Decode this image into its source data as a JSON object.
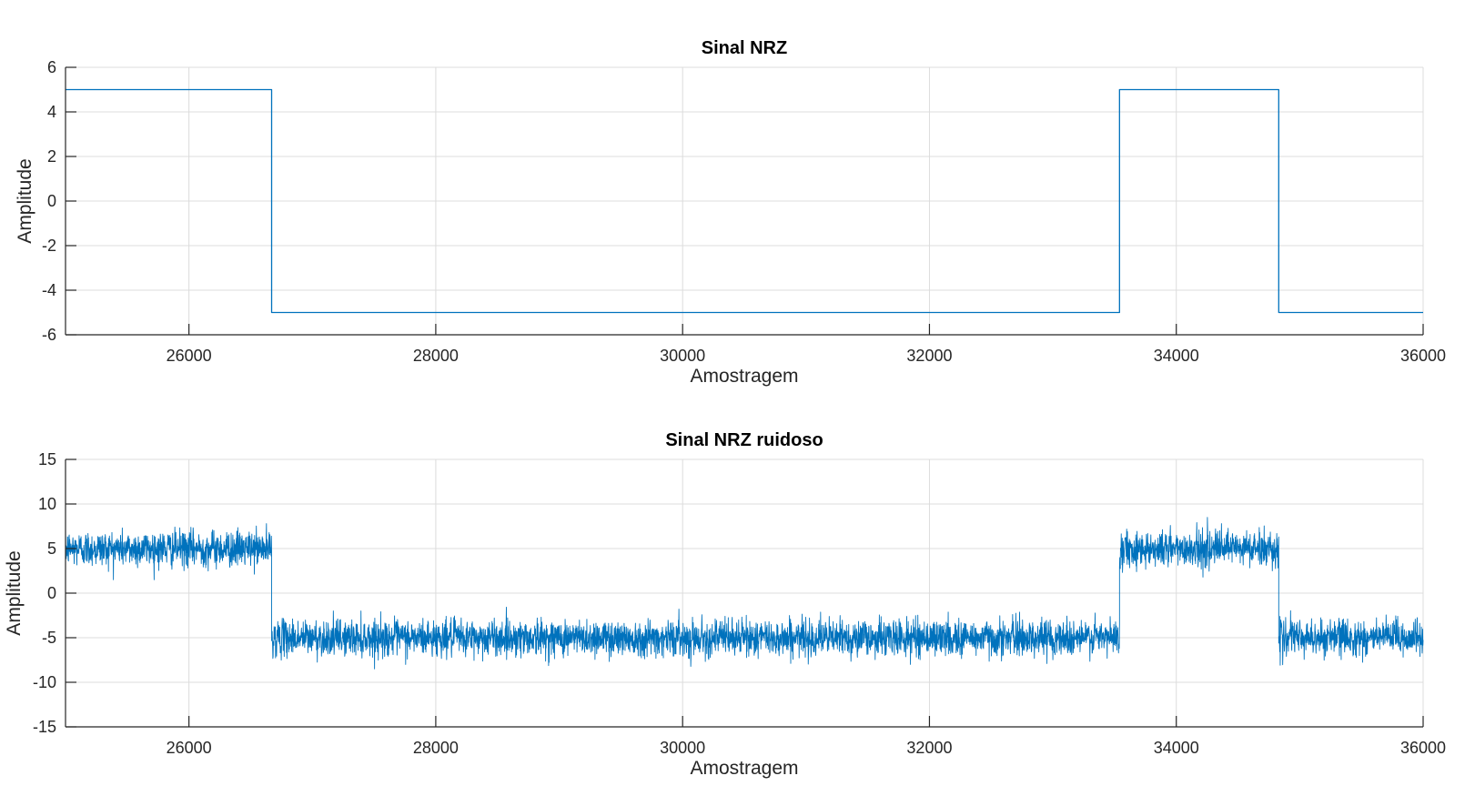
{
  "chart_data": [
    {
      "type": "line",
      "title": "Sinal NRZ",
      "xlabel": "Amostragem",
      "ylabel": "Amplitude",
      "xlim": [
        25000,
        36000
      ],
      "ylim": [
        -6,
        6
      ],
      "xticks": [
        26000,
        28000,
        30000,
        32000,
        34000,
        36000
      ],
      "yticks": [
        -6,
        -4,
        -2,
        0,
        2,
        4,
        6
      ],
      "grid": true,
      "color": "#0072bd",
      "series": [
        {
          "x": [
            25000,
            26670,
            26670,
            33540,
            33540,
            34830,
            34830,
            36000
          ],
          "y": [
            5,
            5,
            -5,
            -5,
            5,
            5,
            -5,
            -5
          ]
        }
      ]
    },
    {
      "type": "line",
      "title": "Sinal NRZ ruidoso",
      "xlabel": "Amostragem",
      "ylabel": "Amplitude",
      "xlim": [
        25000,
        36000
      ],
      "ylim": [
        -15,
        15
      ],
      "xticks": [
        26000,
        28000,
        30000,
        32000,
        34000,
        36000
      ],
      "yticks": [
        -15,
        -10,
        -5,
        0,
        5,
        10,
        15
      ],
      "grid": true,
      "color": "#0072bd",
      "noise_std": 1,
      "noise_range": [
        -3.5,
        3.5
      ],
      "series": [
        {
          "levels": [
            {
              "from": 25000,
              "to": 26670,
              "value": 5
            },
            {
              "from": 26670,
              "to": 33540,
              "value": -5
            },
            {
              "from": 33540,
              "to": 34830,
              "value": 5
            },
            {
              "from": 34830,
              "to": 36000,
              "value": -5
            }
          ]
        }
      ]
    }
  ]
}
